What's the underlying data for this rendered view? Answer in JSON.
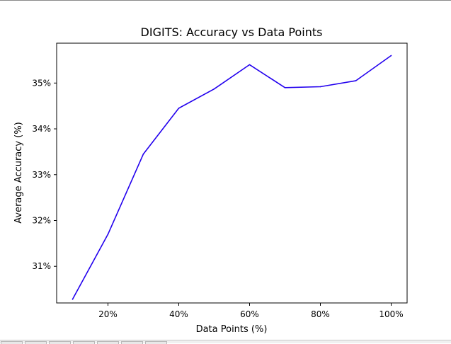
{
  "chart_data": {
    "type": "line",
    "title": "DIGITS: Accuracy vs Data Points",
    "xlabel": "Data Points (%)",
    "ylabel": "Average Accuracy (%)",
    "x": [
      10,
      20,
      30,
      40,
      50,
      60,
      70,
      80,
      90,
      100
    ],
    "series": [
      {
        "values": [
          30.28,
          31.7,
          33.45,
          34.45,
          34.87,
          35.4,
          34.9,
          34.92,
          35.05,
          35.6
        ]
      }
    ],
    "xlim": [
      5.5,
      104.5
    ],
    "ylim": [
      30.2,
      35.87
    ],
    "xticks": [
      20,
      40,
      60,
      80,
      100
    ],
    "xtick_labels": [
      "20%",
      "40%",
      "60%",
      "80%",
      "100%"
    ],
    "yticks": [
      31,
      32,
      33,
      34,
      35
    ],
    "ytick_labels": [
      "31%",
      "32%",
      "33%",
      "34%",
      "35%"
    ],
    "grid": false,
    "line_color": "#2200ee"
  }
}
